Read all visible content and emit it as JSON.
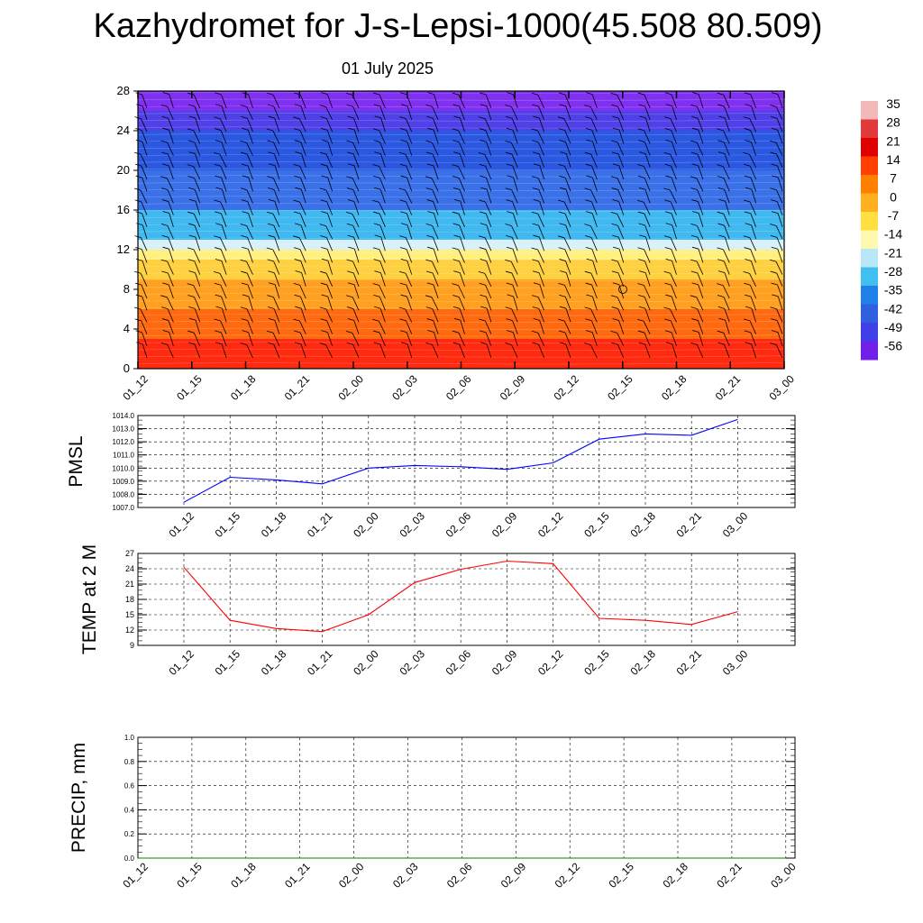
{
  "title": "Kazhydromet for J-s-Lepsi-1000(45.508 80.509)",
  "subtitle": "01 July 2025",
  "time_labels": [
    "01_12",
    "01_15",
    "01_18",
    "01_21",
    "02_00",
    "02_03",
    "02_06",
    "02_09",
    "02_12",
    "02_15",
    "02_18",
    "02_21",
    "03_00"
  ],
  "chart_data": [
    {
      "type": "heatmap",
      "ylim": [
        0,
        28
      ],
      "yticks": [
        "0",
        "4",
        "8",
        "12",
        "16",
        "20",
        "24",
        "28"
      ],
      "colorbar": {
        "labels": [
          "35",
          "28",
          "21",
          "14",
          "7",
          "0",
          "-7",
          "-14",
          "-21",
          "-28",
          "-35",
          "-42",
          "-49",
          "-56"
        ],
        "colors": [
          "#f3b8b8",
          "#e23a3a",
          "#e00000",
          "#ff4000",
          "#ff8000",
          "#ffb020",
          "#ffe040",
          "#fff8b0",
          "#b8e8f8",
          "#40c0f0",
          "#2080e8",
          "#3060e0",
          "#4040e8",
          "#7020e8"
        ]
      },
      "bands": [
        {
          "y0": 0,
          "y1": 3,
          "color": "#ff2a10"
        },
        {
          "y0": 3,
          "y1": 6,
          "color": "#ff6a10"
        },
        {
          "y0": 6,
          "y1": 9,
          "color": "#ffa020"
        },
        {
          "y0": 9,
          "y1": 11,
          "color": "#ffd040"
        },
        {
          "y0": 11,
          "y1": 12,
          "color": "#fff080"
        },
        {
          "y0": 12,
          "y1": 13,
          "color": "#d8f0f8"
        },
        {
          "y0": 13,
          "y1": 16,
          "color": "#40b8f0"
        },
        {
          "y0": 16,
          "y1": 20,
          "color": "#3a70e8"
        },
        {
          "y0": 20,
          "y1": 24,
          "color": "#2a58e0"
        },
        {
          "y0": 24,
          "y1": 26,
          "color": "#5040e8"
        },
        {
          "y0": 26,
          "y1": 28,
          "color": "#8030f0"
        }
      ]
    },
    {
      "type": "line",
      "ylabel": "PMSL",
      "ylim": [
        1007.0,
        1014.0
      ],
      "yticks": [
        "1007.0",
        "1008.0",
        "1009.0",
        "1010.0",
        "1011.0",
        "1012.0",
        "1013.0",
        "1014.0"
      ],
      "series": [
        {
          "color": "#0000ff",
          "values": [
            1007.4,
            1009.3,
            1009.1,
            1008.8,
            1010.0,
            1010.2,
            1010.1,
            1009.9,
            1010.4,
            1012.2,
            1012.6,
            1012.5,
            1013.7
          ]
        }
      ]
    },
    {
      "type": "line",
      "ylabel": "TEMP at 2 M",
      "ylim": [
        9,
        27
      ],
      "yticks": [
        "9",
        "12",
        "15",
        "18",
        "21",
        "24",
        "27"
      ],
      "series": [
        {
          "color": "#ff0000",
          "values": [
            24.3,
            13.9,
            12.3,
            11.7,
            15.0,
            21.3,
            23.9,
            25.5,
            25.0,
            14.3,
            13.9,
            13.1,
            15.6
          ]
        }
      ]
    },
    {
      "type": "line",
      "ylabel": "PRECIP, mm",
      "ylim": [
        0.0,
        1.0
      ],
      "yticks": [
        "0.0",
        "0.2",
        "0.4",
        "0.6",
        "0.8",
        "1.0"
      ],
      "series": [
        {
          "color": "#008000",
          "values": [
            0,
            0,
            0,
            0,
            0,
            0,
            0,
            0,
            0,
            0,
            0,
            0,
            0
          ]
        }
      ]
    }
  ]
}
